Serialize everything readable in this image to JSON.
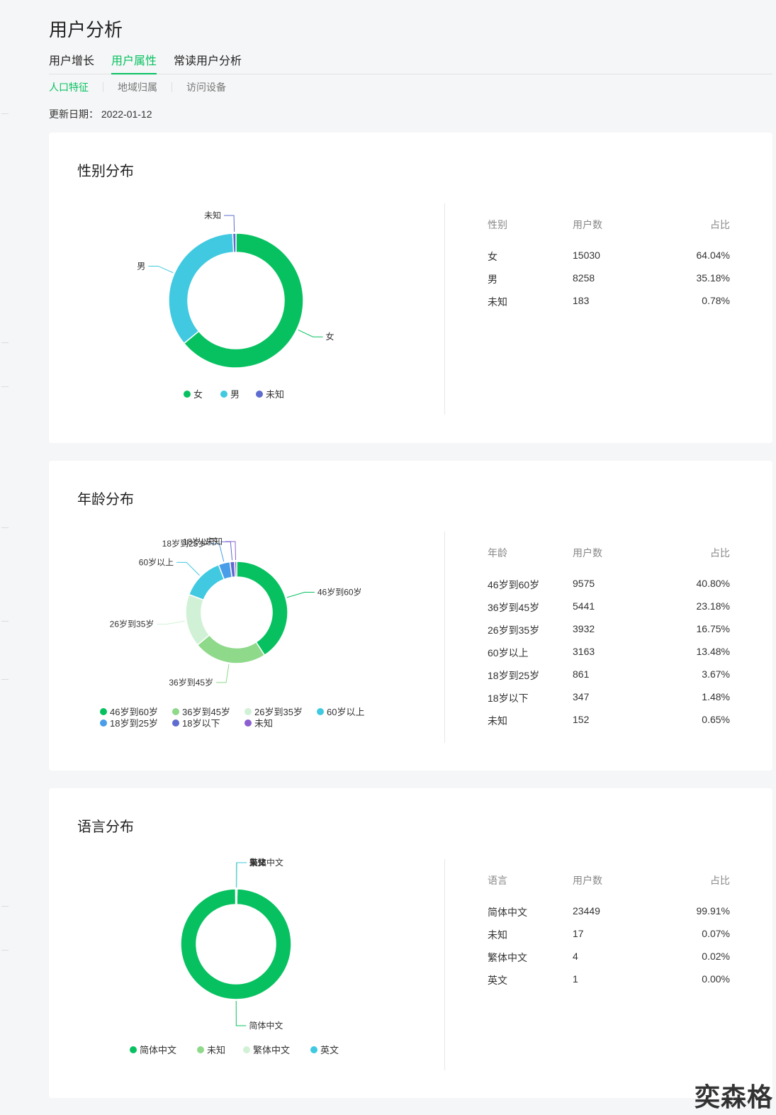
{
  "page": {
    "title": "用户分析",
    "tabs": [
      {
        "label": "用户增长"
      },
      {
        "label": "用户属性"
      },
      {
        "label": "常读用户分析"
      }
    ],
    "subtabs": [
      {
        "label": "人口特征"
      },
      {
        "label": "地域归属"
      },
      {
        "label": "访问设备"
      }
    ],
    "update_label": "更新日期：",
    "update_date": "2022-01-12"
  },
  "watermark": "奕森格",
  "chart_data": [
    {
      "type": "pie",
      "title": "性别分布",
      "categories": [
        "女",
        "男",
        "未知"
      ],
      "values": [
        15030,
        8258,
        183
      ],
      "colors": [
        "#07c160",
        "#40c9e0",
        "#5e6ccf"
      ],
      "table": {
        "headers": [
          "性别",
          "用户数",
          "占比"
        ],
        "rows": [
          [
            "女",
            "15030",
            "64.04%"
          ],
          [
            "男",
            "8258",
            "35.18%"
          ],
          [
            "未知",
            "183",
            "0.78%"
          ]
        ]
      }
    },
    {
      "type": "pie",
      "title": "年龄分布",
      "categories": [
        "46岁到60岁",
        "36岁到45岁",
        "26岁到35岁",
        "60岁以上",
        "18岁到25岁",
        "18岁以下",
        "未知"
      ],
      "values": [
        9575,
        5441,
        3932,
        3163,
        861,
        347,
        152
      ],
      "colors": [
        "#07c160",
        "#8ed98a",
        "#d1f1d6",
        "#40c9e0",
        "#4a9de8",
        "#5e6ccf",
        "#8c5fd0"
      ],
      "table": {
        "headers": [
          "年龄",
          "用户数",
          "占比"
        ],
        "rows": [
          [
            "46岁到60岁",
            "9575",
            "40.80%"
          ],
          [
            "36岁到45岁",
            "5441",
            "23.18%"
          ],
          [
            "26岁到35岁",
            "3932",
            "16.75%"
          ],
          [
            "60岁以上",
            "3163",
            "13.48%"
          ],
          [
            "18岁到25岁",
            "861",
            "3.67%"
          ],
          [
            "18岁以下",
            "347",
            "1.48%"
          ],
          [
            "未知",
            "152",
            "0.65%"
          ]
        ]
      }
    },
    {
      "type": "pie",
      "title": "语言分布",
      "categories": [
        "简体中文",
        "未知",
        "繁体中文",
        "英文"
      ],
      "values": [
        23449,
        17,
        4,
        1
      ],
      "colors": [
        "#07c160",
        "#8ed98a",
        "#d1f1d6",
        "#40c9e0"
      ],
      "table": {
        "headers": [
          "语言",
          "用户数",
          "占比"
        ],
        "rows": [
          [
            "简体中文",
            "23449",
            "99.91%"
          ],
          [
            "未知",
            "17",
            "0.07%"
          ],
          [
            "繁体中文",
            "4",
            "0.02%"
          ],
          [
            "英文",
            "1",
            "0.00%"
          ]
        ]
      }
    }
  ]
}
